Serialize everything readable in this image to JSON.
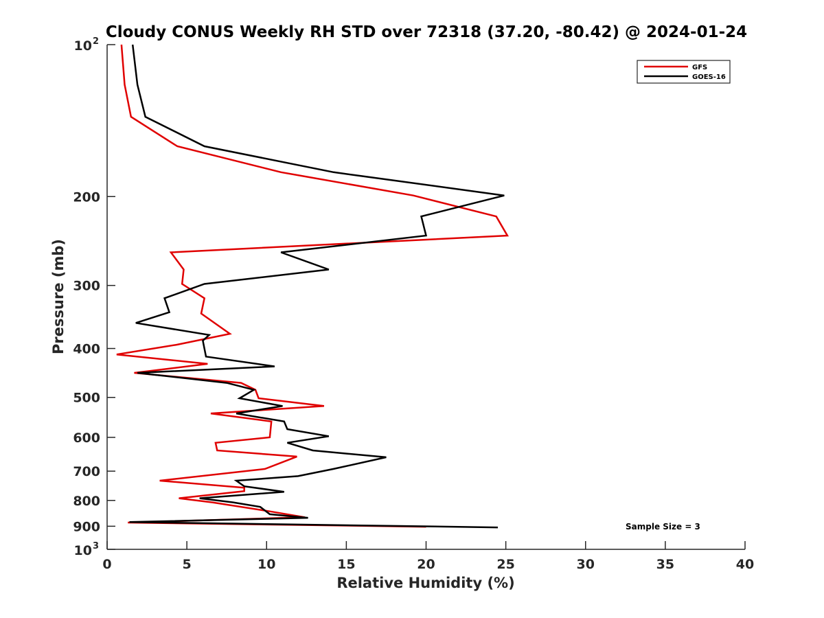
{
  "chart_data": {
    "type": "line",
    "title": "Cloudy CONUS Weekly RH STD over 72318 (37.20, -80.42) @ 2024-01-24",
    "xlabel": "Relative Humidity (%)",
    "ylabel": "Pressure (mb)",
    "xlim": [
      0,
      40
    ],
    "ylim": [
      100,
      1000
    ],
    "yscale": "log",
    "yreversed": true,
    "grid": false,
    "x_ticks": [
      0,
      5,
      10,
      15,
      20,
      25,
      30,
      35,
      40
    ],
    "x_tick_labels": [
      "0",
      "5",
      "10",
      "15",
      "20",
      "25",
      "30",
      "35",
      "40"
    ],
    "y_ticks": [
      100,
      200,
      300,
      400,
      500,
      600,
      700,
      800,
      900,
      1000
    ],
    "y_tick_labels": [
      {
        "base": "10",
        "sup": "2"
      },
      {
        "base": "200"
      },
      {
        "base": "300"
      },
      {
        "base": "400"
      },
      {
        "base": "500"
      },
      {
        "base": "600"
      },
      {
        "base": "700"
      },
      {
        "base": "800"
      },
      {
        "base": "900"
      },
      {
        "base": "10",
        "sup": "3"
      }
    ],
    "legend": {
      "placement": "top-right",
      "entries": [
        {
          "name": "GFS",
          "color": "#e00000"
        },
        {
          "name": "GOES-16",
          "color": "#000000"
        }
      ]
    },
    "annotation": "Sample Size = 3",
    "series": [
      {
        "name": "GFS",
        "color": "#e00000",
        "points": [
          [
            0.9,
            100
          ],
          [
            1.1,
            120
          ],
          [
            1.5,
            139
          ],
          [
            4.4,
            159
          ],
          [
            10.9,
            179
          ],
          [
            19.2,
            199
          ],
          [
            24.4,
            219
          ],
          [
            25.1,
            239
          ],
          [
            4.0,
            258
          ],
          [
            4.8,
            279
          ],
          [
            4.7,
            298
          ],
          [
            6.1,
            318
          ],
          [
            5.9,
            341
          ],
          [
            7.7,
            374
          ],
          [
            4.4,
            393
          ],
          [
            0.6,
            411
          ],
          [
            6.3,
            429
          ],
          [
            1.7,
            447
          ],
          [
            8.4,
            468
          ],
          [
            9.3,
            483
          ],
          [
            9.5,
            502
          ],
          [
            13.6,
            520
          ],
          [
            6.5,
            538
          ],
          [
            10.3,
            558
          ],
          [
            10.2,
            600
          ],
          [
            6.8,
            615
          ],
          [
            6.9,
            637
          ],
          [
            11.9,
            655
          ],
          [
            9.9,
            693
          ],
          [
            3.3,
            731
          ],
          [
            8.6,
            755
          ],
          [
            8.6,
            767
          ],
          [
            4.5,
            792
          ],
          [
            6.6,
            807
          ],
          [
            10.1,
            840
          ],
          [
            12.4,
            864
          ],
          [
            1.3,
            885
          ],
          [
            20.0,
            902
          ]
        ]
      },
      {
        "name": "GOES-16",
        "color": "#000000",
        "points": [
          [
            1.6,
            100
          ],
          [
            1.9,
            120
          ],
          [
            2.4,
            139
          ],
          [
            6.1,
            159
          ],
          [
            14.2,
            179
          ],
          [
            24.9,
            199
          ],
          [
            19.7,
            219
          ],
          [
            20.0,
            239
          ],
          [
            10.9,
            258
          ],
          [
            13.9,
            279
          ],
          [
            6.1,
            298
          ],
          [
            3.6,
            318
          ],
          [
            3.9,
            339
          ],
          [
            1.8,
            356
          ],
          [
            6.4,
            376
          ],
          [
            6.0,
            386
          ],
          [
            6.2,
            415
          ],
          [
            10.5,
            434
          ],
          [
            1.9,
            447
          ],
          [
            7.5,
            468
          ],
          [
            9.2,
            483
          ],
          [
            8.3,
            502
          ],
          [
            11.0,
            520
          ],
          [
            8.1,
            538
          ],
          [
            11.1,
            558
          ],
          [
            11.3,
            578
          ],
          [
            13.9,
            597
          ],
          [
            11.3,
            615
          ],
          [
            12.9,
            637
          ],
          [
            17.5,
            657
          ],
          [
            14.2,
            693
          ],
          [
            11.97,
            716
          ],
          [
            8.1,
            731
          ],
          [
            8.6,
            750
          ],
          [
            11.1,
            769
          ],
          [
            5.8,
            792
          ],
          [
            7.9,
            807
          ],
          [
            9.6,
            824
          ],
          [
            9.99,
            842
          ],
          [
            10.2,
            852
          ],
          [
            12.6,
            866
          ],
          [
            1.4,
            883
          ],
          [
            24.5,
            905
          ]
        ]
      }
    ]
  }
}
